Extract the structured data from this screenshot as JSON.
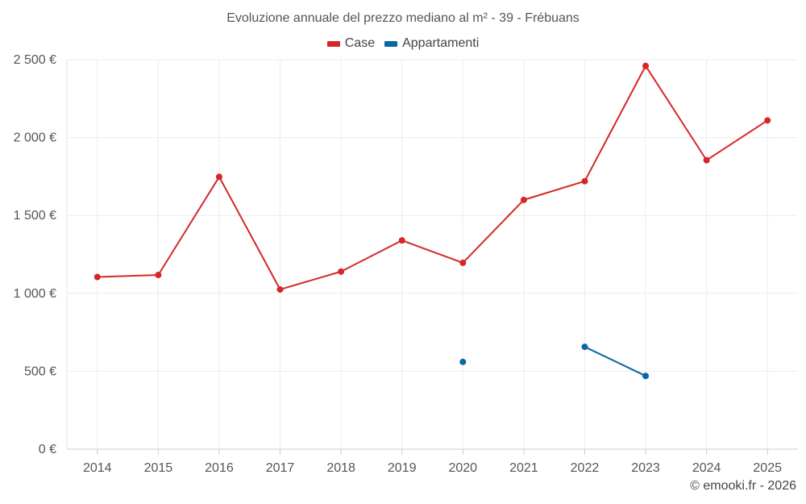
{
  "chart_data": {
    "type": "line",
    "title": "Evoluzione annuale del prezzo mediano al m² - 39 - Frébuans",
    "categories": [
      "2014",
      "2015",
      "2016",
      "2017",
      "2018",
      "2019",
      "2020",
      "2021",
      "2022",
      "2023",
      "2024",
      "2025"
    ],
    "series": [
      {
        "name": "Case",
        "color": "#d62728",
        "values": [
          1105,
          1118,
          1748,
          1025,
          1140,
          1340,
          1196,
          1600,
          1720,
          2460,
          1855,
          2110
        ]
      },
      {
        "name": "Appartamenti",
        "color": "#0a67a3",
        "values": [
          null,
          null,
          null,
          null,
          null,
          null,
          560,
          null,
          657,
          470,
          null,
          null
        ]
      }
    ],
    "ylim": [
      0,
      2500
    ],
    "yticks": [
      0,
      500,
      1000,
      1500,
      2000,
      2500
    ],
    "ytick_labels": [
      "0 €",
      "500 €",
      "1 000 €",
      "1 500 €",
      "2 000 €",
      "2 500 €"
    ],
    "xlabel": "",
    "ylabel": "",
    "grid": true,
    "legend_position": "top-center"
  },
  "credit": "© emooki.fr - 2026"
}
